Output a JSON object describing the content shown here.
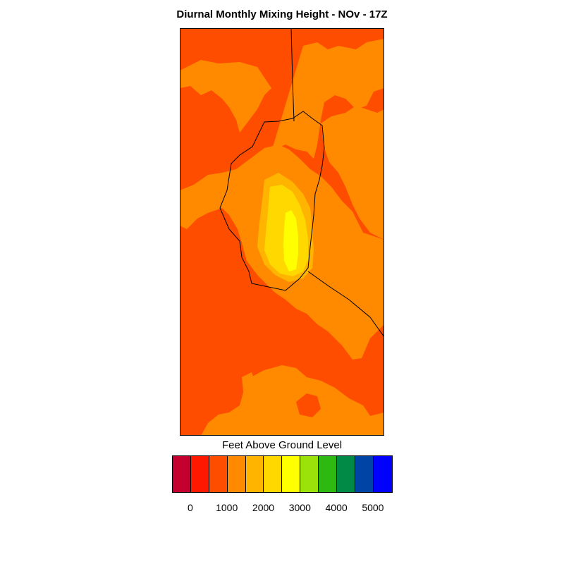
{
  "title": "Diurnal Monthly Mixing Height - NOv - 17Z",
  "colorbar": {
    "label": "Feet Above Ground Level",
    "colors": [
      "#c4002e",
      "#ff1800",
      "#ff4d00",
      "#ff8a00",
      "#ffb400",
      "#ffd800",
      "#ffff00",
      "#9be10a",
      "#2db812",
      "#008a45",
      "#0045a5",
      "#0000ff"
    ],
    "ticks": [
      "0",
      "1000",
      "2000",
      "3000",
      "4000",
      "5000"
    ]
  },
  "legend_colors": {
    "base": "#ff4d00",
    "level_1500": "#ff8a00",
    "level_2000": "#ffb400",
    "level_2500": "#ffd800",
    "level_3000": "#ffff00"
  }
}
